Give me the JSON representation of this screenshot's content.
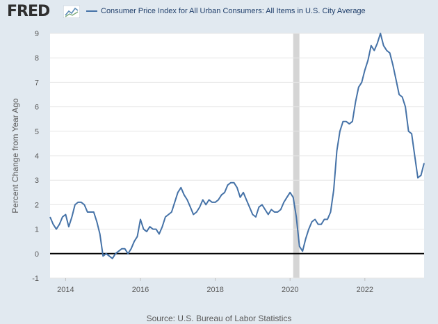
{
  "brand": {
    "logo_text": "FRED"
  },
  "chart_data": {
    "type": "line",
    "title": "",
    "ylabel": "Percent Change from Year Ago",
    "xlabel": "",
    "ylim": [
      -1,
      9
    ],
    "xlim": [
      "2013-08",
      "2023-08"
    ],
    "grid": "horizontal",
    "legend_position": "top-left",
    "yticks": [
      -1,
      0,
      1,
      2,
      3,
      4,
      5,
      6,
      7,
      8,
      9
    ],
    "xticks": [
      "2014",
      "2016",
      "2018",
      "2020",
      "2022"
    ],
    "recession_shading": [
      {
        "start": "2020-02",
        "end": "2020-04"
      }
    ],
    "series": [
      {
        "name": "Consumer Price Index for All Urban Consumers: All Items in U.S. City Average",
        "color": "#4572a7",
        "x": [
          "2013-08",
          "2013-09",
          "2013-10",
          "2013-11",
          "2013-12",
          "2014-01",
          "2014-02",
          "2014-03",
          "2014-04",
          "2014-05",
          "2014-06",
          "2014-07",
          "2014-08",
          "2014-09",
          "2014-10",
          "2014-11",
          "2014-12",
          "2015-01",
          "2015-02",
          "2015-03",
          "2015-04",
          "2015-05",
          "2015-06",
          "2015-07",
          "2015-08",
          "2015-09",
          "2015-10",
          "2015-11",
          "2015-12",
          "2016-01",
          "2016-02",
          "2016-03",
          "2016-04",
          "2016-05",
          "2016-06",
          "2016-07",
          "2016-08",
          "2016-09",
          "2016-10",
          "2016-11",
          "2016-12",
          "2017-01",
          "2017-02",
          "2017-03",
          "2017-04",
          "2017-05",
          "2017-06",
          "2017-07",
          "2017-08",
          "2017-09",
          "2017-10",
          "2017-11",
          "2017-12",
          "2018-01",
          "2018-02",
          "2018-03",
          "2018-04",
          "2018-05",
          "2018-06",
          "2018-07",
          "2018-08",
          "2018-09",
          "2018-10",
          "2018-11",
          "2018-12",
          "2019-01",
          "2019-02",
          "2019-03",
          "2019-04",
          "2019-05",
          "2019-06",
          "2019-07",
          "2019-08",
          "2019-09",
          "2019-10",
          "2019-11",
          "2019-12",
          "2020-01",
          "2020-02",
          "2020-03",
          "2020-04",
          "2020-05",
          "2020-06",
          "2020-07",
          "2020-08",
          "2020-09",
          "2020-10",
          "2020-11",
          "2020-12",
          "2021-01",
          "2021-02",
          "2021-03",
          "2021-04",
          "2021-05",
          "2021-06",
          "2021-07",
          "2021-08",
          "2021-09",
          "2021-10",
          "2021-11",
          "2021-12",
          "2022-01",
          "2022-02",
          "2022-03",
          "2022-04",
          "2022-05",
          "2022-06",
          "2022-07",
          "2022-08",
          "2022-09",
          "2022-10",
          "2022-11",
          "2022-12",
          "2023-01",
          "2023-02",
          "2023-03",
          "2023-04",
          "2023-05",
          "2023-06",
          "2023-07",
          "2023-08"
        ],
        "values": [
          1.5,
          1.2,
          1.0,
          1.2,
          1.5,
          1.6,
          1.1,
          1.5,
          2.0,
          2.1,
          2.1,
          2.0,
          1.7,
          1.7,
          1.7,
          1.3,
          0.8,
          -0.1,
          0.0,
          -0.1,
          -0.2,
          0.0,
          0.1,
          0.2,
          0.2,
          0.0,
          0.2,
          0.5,
          0.7,
          1.4,
          1.0,
          0.9,
          1.1,
          1.0,
          1.0,
          0.8,
          1.1,
          1.5,
          1.6,
          1.7,
          2.1,
          2.5,
          2.7,
          2.4,
          2.2,
          1.9,
          1.6,
          1.7,
          1.9,
          2.2,
          2.0,
          2.2,
          2.1,
          2.1,
          2.2,
          2.4,
          2.5,
          2.8,
          2.9,
          2.9,
          2.7,
          2.3,
          2.5,
          2.2,
          1.9,
          1.6,
          1.5,
          1.9,
          2.0,
          1.8,
          1.6,
          1.8,
          1.7,
          1.7,
          1.8,
          2.1,
          2.3,
          2.5,
          2.3,
          1.5,
          0.3,
          0.1,
          0.6,
          1.0,
          1.3,
          1.4,
          1.2,
          1.2,
          1.4,
          1.4,
          1.7,
          2.6,
          4.2,
          5.0,
          5.4,
          5.4,
          5.3,
          5.4,
          6.2,
          6.8,
          7.0,
          7.5,
          7.9,
          8.5,
          8.3,
          8.6,
          9.0,
          8.5,
          8.3,
          8.2,
          7.7,
          7.1,
          6.5,
          6.4,
          6.0,
          5.0,
          4.9,
          4.0,
          3.1,
          3.2,
          3.7
        ]
      }
    ]
  },
  "source": "Source: U.S. Bureau of Labor Statistics"
}
